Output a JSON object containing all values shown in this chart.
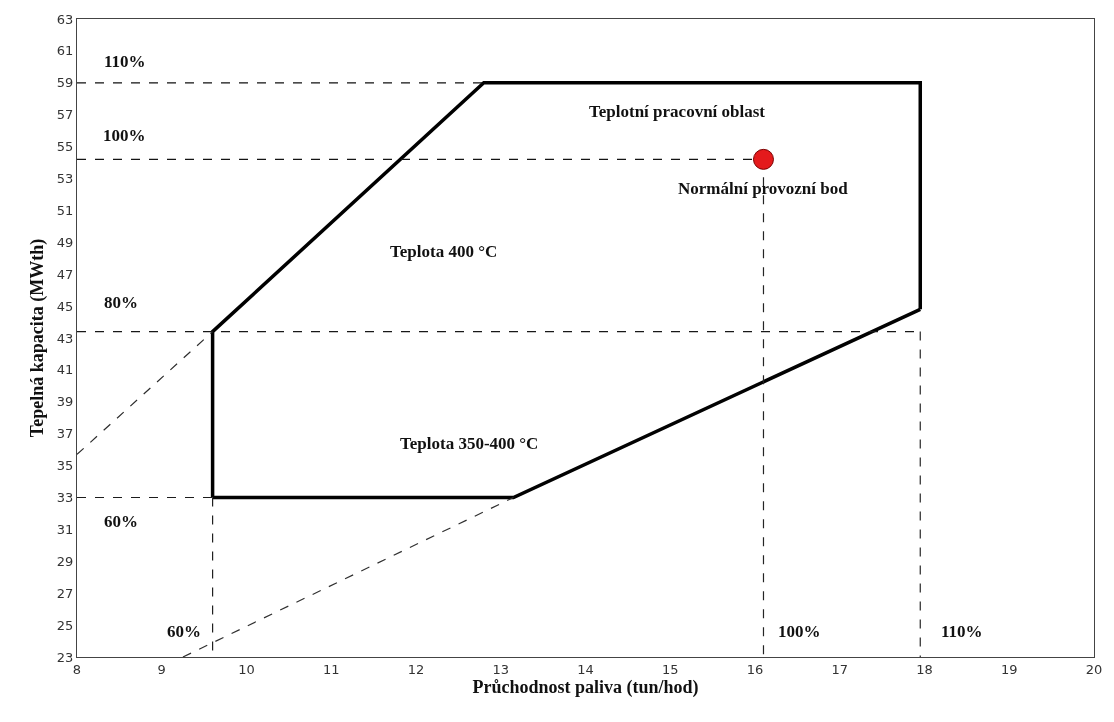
{
  "chart_data": {
    "type": "line",
    "xlabel": "Průchodnost paliva (tun/hod)",
    "ylabel": "Tepelná kapacita (MWth)",
    "xlim": [
      8,
      20
    ],
    "xticks": [
      8,
      9,
      10,
      11,
      12,
      13,
      14,
      15,
      16,
      17,
      18,
      19,
      20
    ],
    "ylim": [
      23,
      63
    ],
    "yticks": [
      23,
      25,
      27,
      29,
      31,
      33,
      35,
      37,
      39,
      41,
      43,
      45,
      47,
      49,
      51,
      53,
      55,
      57,
      59,
      61,
      63
    ],
    "marker": "none",
    "series": [
      {
        "color": "#000000",
        "line_style": "solid",
        "x": [
          9.6,
          9.6,
          12.8,
          17.95,
          17.95
        ],
        "values": [
          33,
          43.4,
          59,
          59,
          44.8
        ]
      },
      {
        "color": "#020202",
        "line_style": "solid",
        "x": [
          9.6,
          13.15,
          17.95
        ],
        "values": [
          33,
          33,
          44.8
        ]
      },
      {
        "color": "#101010",
        "line_style": "dashed",
        "x": [
          8,
          12.8
        ],
        "values": [
          59,
          59
        ]
      },
      {
        "color": "#141414",
        "line_style": "dashed",
        "x": [
          8,
          16.1
        ],
        "values": [
          54.2,
          54.2
        ]
      },
      {
        "color": "#181818",
        "line_style": "dashed",
        "x": [
          8,
          17.95
        ],
        "values": [
          43.4,
          43.4
        ]
      },
      {
        "color": "#1c1c1c",
        "line_style": "dashed",
        "x": [
          8,
          9.6
        ],
        "values": [
          33,
          33
        ]
      },
      {
        "color": "#202020",
        "line_style": "dashed",
        "x": [
          9.6,
          9.6
        ],
        "values": [
          33,
          23
        ]
      },
      {
        "color": "#242424",
        "line_style": "dashed",
        "x": [
          16.1,
          16.1
        ],
        "values": [
          54.2,
          23
        ]
      },
      {
        "color": "#282828",
        "line_style": "dashed",
        "x": [
          17.95,
          17.95
        ],
        "values": [
          43.4,
          23
        ]
      },
      {
        "color": "#2c2c2c",
        "line_style": "dashed",
        "x": [
          8,
          9.6
        ],
        "values": [
          35.7,
          43.4
        ]
      },
      {
        "color": "#303030",
        "line_style": "dashed",
        "x": [
          9.25,
          13.15
        ],
        "values": [
          23,
          33
        ]
      },
      {
        "type": "scatter",
        "color": "#e41a1c",
        "marker": "circle",
        "x": [
          16.1
        ],
        "values": [
          54.2
        ]
      }
    ],
    "annotations": [
      "110%",
      "100%",
      "80%",
      "60%",
      "60%",
      "100%",
      "110%",
      "Teplota 400 °C",
      "Teplotní pracovní oblast",
      {
        "text": "Normální provozní bod",
        "x": 16.1,
        "y": 52.4
      },
      "Teplota 350-400 °C"
    ]
  }
}
